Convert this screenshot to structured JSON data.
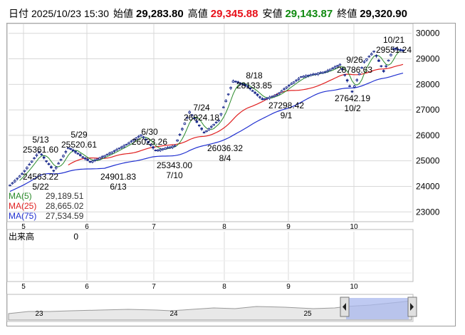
{
  "header": {
    "date_label": "日付",
    "datetime": "2025/10/23 15:30",
    "open_label": "始値",
    "open": "29,283.80",
    "high_label": "高値",
    "high": "29,345.88",
    "low_label": "安値",
    "low": "29,143.87",
    "close_label": "終値",
    "close": "29,320.90"
  },
  "ma_legend": [
    {
      "label": "MA(5)",
      "value": "29,189.51",
      "color": "#2a8a2a"
    },
    {
      "label": "MA(25)",
      "value": "28,665.02",
      "color": "#e02020"
    },
    {
      "label": "MA(75)",
      "value": "27,534.59",
      "color": "#2030d0"
    }
  ],
  "volume_panel": {
    "label": "出来高",
    "value": "0"
  },
  "colors": {
    "up": "#ffffff",
    "down": "#1a2a8c",
    "candle_outline": "#1a2a8c",
    "grid": "#d8d8d8",
    "navigator_fill": "#a9b8ee"
  },
  "chart_data": {
    "type": "candlestick",
    "y_ticks": [
      "30000",
      "29000",
      "28000",
      "27000",
      "26000",
      "25000",
      "24000",
      "23000"
    ],
    "ylim": [
      22700,
      30300
    ],
    "x_month_labels": [
      "5",
      "6",
      "7",
      "8",
      "9",
      "10"
    ],
    "navigator_labels": [
      "23",
      "24",
      "25"
    ],
    "annotations": [
      {
        "text": "5/13",
        "value": "25361.60"
      },
      {
        "text": "5/22",
        "value": "24563.22"
      },
      {
        "text": "5/29",
        "value": "25520.61"
      },
      {
        "text": "6/13",
        "value": "24901.83"
      },
      {
        "text": "6/30",
        "value": "26023.26"
      },
      {
        "text": "7/10",
        "value": "25343.00"
      },
      {
        "text": "7/24",
        "value": "26924.18"
      },
      {
        "text": "8/4",
        "value": "26036.32"
      },
      {
        "text": "8/18",
        "value": "28133.85"
      },
      {
        "text": "9/1",
        "value": "27298.42"
      },
      {
        "text": "9/26",
        "value": "28786.63"
      },
      {
        "text": "10/2",
        "value": "27642.19"
      },
      {
        "text": "10/21",
        "value": "29551.24"
      }
    ],
    "ma5_end": 29189.51,
    "ma25_end": 28665.02,
    "ma75_end": 27534.59,
    "last_ohlc": [
      29283.8,
      29345.88,
      29143.87,
      29320.9
    ]
  }
}
